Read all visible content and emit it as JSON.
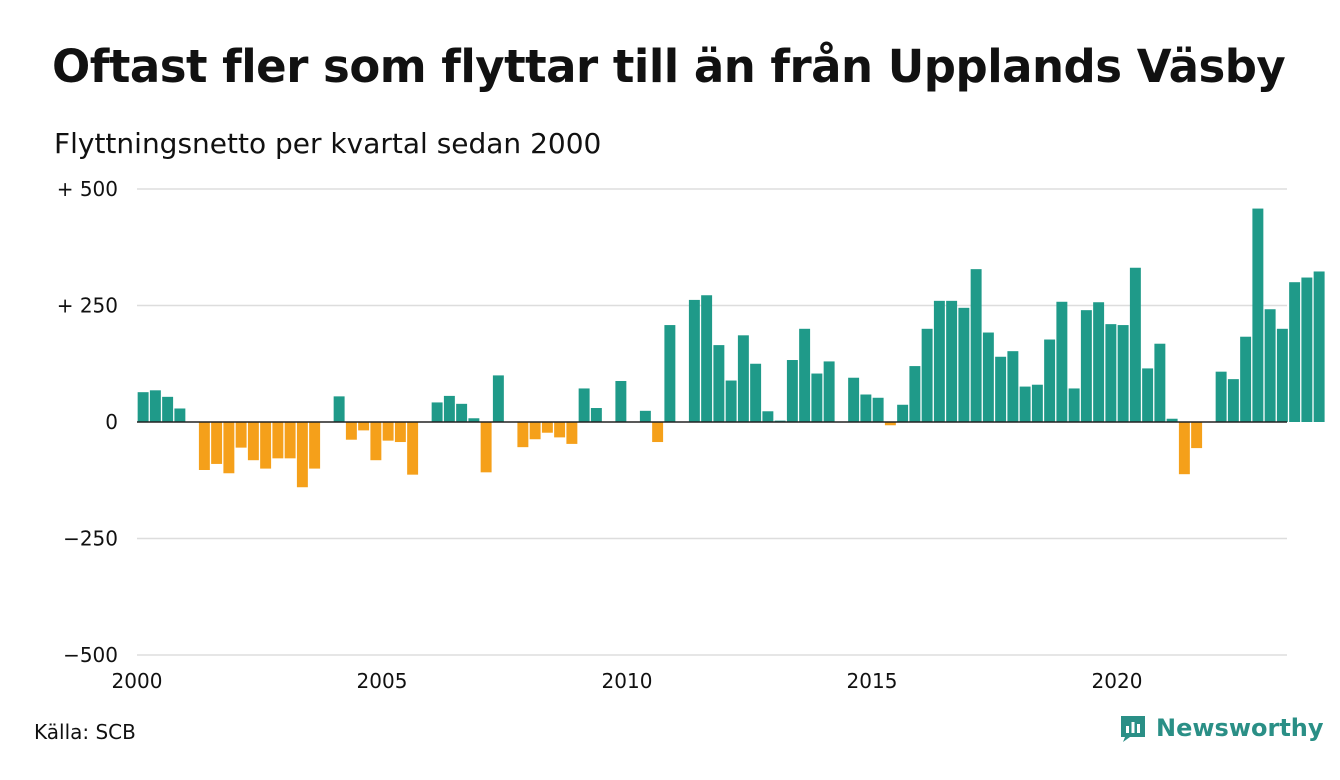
{
  "title": "Oftast fler som flyttar till än från Upplands Väsby",
  "subtitle": "Flyttningsnetto per kvartal sedan 2000",
  "source": "Källa: SCB",
  "brand": {
    "name": "Newsworthy",
    "icon": "newsworthy-logo-icon"
  },
  "colors": {
    "positive": "#1f9a89",
    "negative": "#f5a01a",
    "grid": "#dddddd",
    "zero_line": "#222222"
  },
  "chart_data": {
    "type": "bar",
    "title": "Oftast fler som flyttar till än från Upplands Väsby",
    "subtitle": "Flyttningsnetto per kvartal sedan 2000",
    "xlabel": "",
    "ylabel": "",
    "x_start": "2000 Q1",
    "ylim": [
      -500,
      500
    ],
    "yticks": [
      500,
      250,
      0,
      -250,
      -500
    ],
    "ytick_labels": [
      "+ 500",
      "+ 250",
      "0",
      "−250",
      "−500"
    ],
    "xtick_labels": [
      "2000",
      "2005",
      "2010",
      "2015",
      "2020"
    ],
    "grid": true,
    "values": [
      64,
      68,
      54,
      29,
      0,
      -103,
      -90,
      -110,
      -55,
      -82,
      -100,
      -78,
      -78,
      -140,
      -100,
      0,
      55,
      -38,
      -18,
      -82,
      -40,
      -43,
      -113,
      0,
      42,
      56,
      39,
      8,
      -108,
      100,
      0,
      -54,
      -37,
      -23,
      -33,
      -47,
      72,
      30,
      0,
      88,
      0,
      24,
      -43,
      208,
      0,
      262,
      272,
      165,
      89,
      186,
      125,
      23,
      3,
      133,
      200,
      104,
      130,
      0,
      95,
      59,
      52,
      -7,
      37,
      120,
      200,
      260,
      260,
      245,
      328,
      192,
      140,
      152,
      76,
      80,
      177,
      258,
      72,
      240,
      257,
      210,
      208,
      331,
      115,
      168,
      7,
      -112,
      -56,
      0,
      108,
      92,
      183,
      458,
      242,
      200,
      300,
      310,
      323
    ]
  }
}
